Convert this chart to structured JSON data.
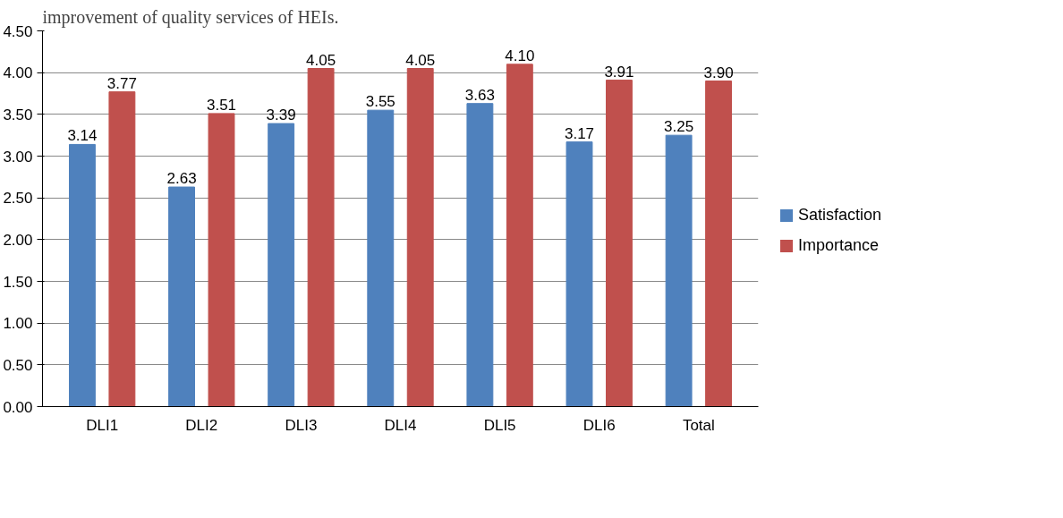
{
  "chart_data": {
    "type": "bar",
    "annotations": [
      "improvement of quality services of HEIs."
    ],
    "categories": [
      "DLI1",
      "DLI2",
      "DLI3",
      "DLI4",
      "DLI5",
      "DLI6",
      "Total"
    ],
    "series": [
      {
        "name": "Satisfaction",
        "color": "#4f81bd",
        "values": [
          3.14,
          2.63,
          3.39,
          3.55,
          3.63,
          3.17,
          3.25
        ],
        "value_labels": [
          "3.14",
          "2.63",
          "3.39",
          "3.55",
          "3.63",
          "3.17",
          "3.25"
        ]
      },
      {
        "name": "Importance",
        "color": "#c0504d",
        "values": [
          3.77,
          3.51,
          4.05,
          4.05,
          4.1,
          3.91,
          3.9
        ],
        "value_labels": [
          "3.77",
          "3.51",
          "4.05",
          "4.05",
          "4.10",
          "3.91",
          "3.90"
        ]
      }
    ],
    "ylim": [
      0,
      4.5
    ],
    "yticks": [
      {
        "value": 0,
        "label": "0.00"
      },
      {
        "value": 0.5,
        "label": "0.50"
      },
      {
        "value": 1,
        "label": "1.00"
      },
      {
        "value": 1.5,
        "label": "1.50"
      },
      {
        "value": 2,
        "label": "2.00"
      },
      {
        "value": 2.5,
        "label": "2.50"
      },
      {
        "value": 3,
        "label": "3.00"
      },
      {
        "value": 3.5,
        "label": "3.50"
      },
      {
        "value": 4,
        "label": "4.00"
      },
      {
        "value": 4.5,
        "label": "4.50"
      }
    ],
    "grid": "y",
    "legend": "right"
  }
}
